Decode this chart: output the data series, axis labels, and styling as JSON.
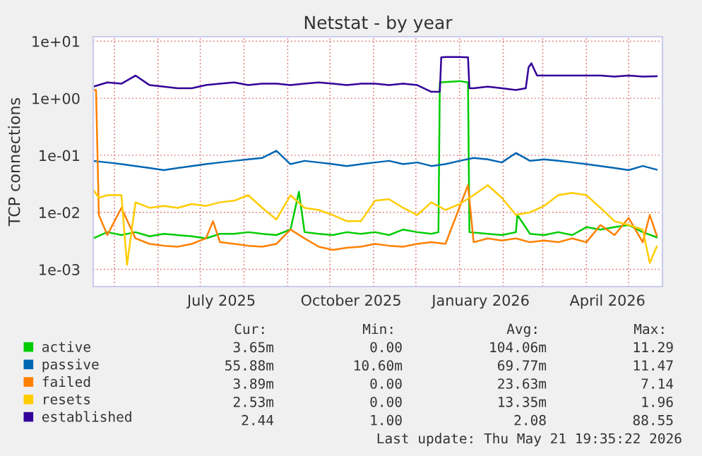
{
  "chart_data": {
    "type": "line",
    "title": "Netstat - by year",
    "ylabel": "TCP connections",
    "log": true,
    "grid": true,
    "legend": "bottom",
    "line_style": "solid",
    "xlim": [
      "2025-04-16",
      "2026-05-25"
    ],
    "xticks": [
      {
        "value": "2025-05-01",
        "label": null
      },
      {
        "value": "2025-06-01",
        "label": null
      },
      {
        "value": "2025-07-01",
        "label": null
      },
      {
        "value": "2025-08-01",
        "label": null
      },
      {
        "value": "2025-09-01",
        "label": null
      },
      {
        "value": "2025-10-01",
        "label": null
      },
      {
        "value": "2025-11-01",
        "label": null
      },
      {
        "value": "2025-12-01",
        "label": null
      },
      {
        "value": "2026-01-01",
        "label": null
      },
      {
        "value": "2026-02-01",
        "label": null
      },
      {
        "value": "2026-03-01",
        "label": null
      },
      {
        "value": "2026-04-01",
        "label": null
      },
      {
        "value": "2026-05-01",
        "label": null
      },
      {
        "value": "2025-07-16",
        "label": "July 2025"
      },
      {
        "value": "2025-10-16",
        "label": "October 2025"
      },
      {
        "value": "2026-01-16",
        "label": "January 2026"
      },
      {
        "value": "2026-04-16",
        "label": "April 2026"
      }
    ],
    "ylim": [
      0.0005,
      12
    ],
    "yticks": [
      {
        "value": 0.001,
        "label": "1e-03"
      },
      {
        "value": 0.01,
        "label": "1e-02"
      },
      {
        "value": 0.1,
        "label": "1e-01"
      },
      {
        "value": 1,
        "label": "1e+00"
      },
      {
        "value": 10,
        "label": "1e+01"
      }
    ],
    "series": [
      {
        "name": "active",
        "color": "#00cc00",
        "x": [
          "2025-04-16",
          "2025-04-26",
          "2025-05-06",
          "2025-05-16",
          "2025-05-26",
          "2025-06-05",
          "2025-06-15",
          "2025-06-25",
          "2025-07-05",
          "2025-07-15",
          "2025-07-25",
          "2025-08-04",
          "2025-08-14",
          "2025-08-24",
          "2025-09-03",
          "2025-09-09",
          "2025-09-13",
          "2025-09-23",
          "2025-10-03",
          "2025-10-13",
          "2025-10-23",
          "2025-11-02",
          "2025-11-12",
          "2025-11-22",
          "2025-12-02",
          "2025-12-12",
          "2025-12-17",
          "2025-12-18",
          "2026-01-01",
          "2026-01-07",
          "2026-01-08",
          "2026-01-21",
          "2026-01-31",
          "2026-02-10",
          "2026-02-11",
          "2026-02-20",
          "2026-03-02",
          "2026-03-12",
          "2026-03-22",
          "2026-04-01",
          "2026-04-11",
          "2026-04-21",
          "2026-05-01",
          "2026-05-11",
          "2026-05-21"
        ],
        "values": [
          0.0035,
          0.0045,
          0.004,
          0.0045,
          0.0038,
          0.0042,
          0.004,
          0.0038,
          0.0035,
          0.0042,
          0.0042,
          0.0045,
          0.0042,
          0.004,
          0.005,
          0.023,
          0.0045,
          0.0042,
          0.004,
          0.0045,
          0.0042,
          0.0045,
          0.004,
          0.005,
          0.0045,
          0.0042,
          0.0045,
          1.9,
          2.0,
          1.9,
          0.0045,
          0.0042,
          0.004,
          0.0045,
          0.009,
          0.0042,
          0.004,
          0.0045,
          0.004,
          0.0055,
          0.005,
          0.0055,
          0.006,
          0.0045,
          0.00365
        ]
      },
      {
        "name": "passive",
        "color": "#0066b3",
        "x": [
          "2025-04-16",
          "2025-04-26",
          "2025-05-06",
          "2025-05-16",
          "2025-05-26",
          "2025-06-05",
          "2025-06-15",
          "2025-06-25",
          "2025-07-05",
          "2025-07-15",
          "2025-07-25",
          "2025-08-04",
          "2025-08-14",
          "2025-08-24",
          "2025-09-03",
          "2025-09-13",
          "2025-09-23",
          "2025-10-03",
          "2025-10-13",
          "2025-10-23",
          "2025-11-02",
          "2025-11-12",
          "2025-11-22",
          "2025-12-02",
          "2025-12-12",
          "2025-12-22",
          "2026-01-01",
          "2026-01-11",
          "2026-01-21",
          "2026-01-31",
          "2026-02-10",
          "2026-02-20",
          "2026-03-02",
          "2026-03-12",
          "2026-03-22",
          "2026-04-01",
          "2026-04-11",
          "2026-04-21",
          "2026-05-01",
          "2026-05-11",
          "2026-05-21"
        ],
        "values": [
          0.08,
          0.075,
          0.07,
          0.065,
          0.06,
          0.055,
          0.06,
          0.065,
          0.07,
          0.075,
          0.08,
          0.085,
          0.09,
          0.12,
          0.07,
          0.08,
          0.075,
          0.07,
          0.065,
          0.07,
          0.075,
          0.08,
          0.07,
          0.075,
          0.065,
          0.07,
          0.08,
          0.09,
          0.085,
          0.075,
          0.11,
          0.08,
          0.085,
          0.08,
          0.075,
          0.07,
          0.065,
          0.06,
          0.055,
          0.065,
          0.056
        ]
      },
      {
        "name": "failed",
        "color": "#ff8000",
        "x": [
          "2025-04-16",
          "2025-04-18",
          "2025-04-20",
          "2025-04-26",
          "2025-05-06",
          "2025-05-16",
          "2025-05-26",
          "2025-06-05",
          "2025-06-15",
          "2025-06-25",
          "2025-07-05",
          "2025-07-10",
          "2025-07-15",
          "2025-07-25",
          "2025-08-04",
          "2025-08-14",
          "2025-08-24",
          "2025-09-03",
          "2025-09-13",
          "2025-09-23",
          "2025-10-03",
          "2025-10-13",
          "2025-10-23",
          "2025-11-02",
          "2025-11-12",
          "2025-11-22",
          "2025-12-02",
          "2025-12-12",
          "2025-12-22",
          "2026-01-07",
          "2026-01-11",
          "2026-01-21",
          "2026-01-31",
          "2026-02-10",
          "2026-02-20",
          "2026-03-02",
          "2026-03-12",
          "2026-03-22",
          "2026-04-01",
          "2026-04-11",
          "2026-04-21",
          "2026-05-01",
          "2026-05-11",
          "2026-05-16",
          "2026-05-21"
        ],
        "values": [
          1.4,
          1.4,
          0.009,
          0.004,
          0.012,
          0.0035,
          0.0028,
          0.0026,
          0.0025,
          0.0028,
          0.0035,
          0.007,
          0.003,
          0.0028,
          0.0026,
          0.0025,
          0.0028,
          0.005,
          0.0035,
          0.0025,
          0.0022,
          0.0024,
          0.0025,
          0.0028,
          0.0026,
          0.0025,
          0.0028,
          0.003,
          0.0028,
          0.03,
          0.003,
          0.0035,
          0.0032,
          0.0035,
          0.003,
          0.0032,
          0.003,
          0.0035,
          0.003,
          0.006,
          0.004,
          0.008,
          0.003,
          0.009,
          0.00389
        ]
      },
      {
        "name": "resets",
        "color": "#ffcc00",
        "x": [
          "2025-04-16",
          "2025-04-20",
          "2025-04-26",
          "2025-05-06",
          "2025-05-10",
          "2025-05-16",
          "2025-05-26",
          "2025-06-05",
          "2025-06-15",
          "2025-06-25",
          "2025-07-05",
          "2025-07-15",
          "2025-07-25",
          "2025-08-04",
          "2025-08-14",
          "2025-08-24",
          "2025-09-03",
          "2025-09-13",
          "2025-09-23",
          "2025-10-03",
          "2025-10-13",
          "2025-10-23",
          "2025-11-02",
          "2025-11-12",
          "2025-11-22",
          "2025-12-02",
          "2025-12-12",
          "2025-12-22",
          "2026-01-01",
          "2026-01-11",
          "2026-01-21",
          "2026-01-31",
          "2026-02-10",
          "2026-02-20",
          "2026-03-02",
          "2026-03-12",
          "2026-03-22",
          "2026-04-01",
          "2026-04-11",
          "2026-04-21",
          "2026-05-01",
          "2026-05-11",
          "2026-05-16",
          "2026-05-21"
        ],
        "values": [
          0.025,
          0.018,
          0.02,
          0.02,
          0.0012,
          0.015,
          0.012,
          0.013,
          0.012,
          0.014,
          0.013,
          0.015,
          0.016,
          0.02,
          0.012,
          0.0075,
          0.02,
          0.012,
          0.011,
          0.009,
          0.007,
          0.007,
          0.016,
          0.017,
          0.012,
          0.009,
          0.015,
          0.011,
          0.014,
          0.02,
          0.03,
          0.018,
          0.009,
          0.01,
          0.013,
          0.02,
          0.022,
          0.02,
          0.012,
          0.007,
          0.006,
          0.005,
          0.0013,
          0.00253
        ]
      },
      {
        "name": "established",
        "color": "#330099",
        "x": [
          "2025-04-16",
          "2025-04-26",
          "2025-05-06",
          "2025-05-16",
          "2025-05-26",
          "2025-06-05",
          "2025-06-15",
          "2025-06-25",
          "2025-07-05",
          "2025-07-15",
          "2025-07-25",
          "2025-08-04",
          "2025-08-14",
          "2025-08-24",
          "2025-09-03",
          "2025-09-13",
          "2025-09-23",
          "2025-10-03",
          "2025-10-13",
          "2025-10-23",
          "2025-11-02",
          "2025-11-12",
          "2025-11-22",
          "2025-12-02",
          "2025-12-12",
          "2025-12-18",
          "2025-12-19",
          "2025-12-22",
          "2026-01-01",
          "2026-01-07",
          "2026-01-08",
          "2026-01-11",
          "2026-01-21",
          "2026-01-31",
          "2026-02-10",
          "2026-02-17",
          "2026-02-19",
          "2026-02-21",
          "2026-02-25",
          "2026-03-02",
          "2026-03-12",
          "2026-03-22",
          "2026-04-01",
          "2026-04-11",
          "2026-04-21",
          "2026-05-01",
          "2026-05-11",
          "2026-05-21"
        ],
        "values": [
          1.6,
          1.9,
          1.8,
          2.5,
          1.7,
          1.6,
          1.5,
          1.5,
          1.7,
          1.8,
          1.9,
          1.7,
          1.8,
          1.8,
          1.7,
          1.8,
          1.9,
          1.8,
          1.7,
          1.8,
          1.8,
          1.7,
          1.8,
          1.7,
          1.3,
          1.3,
          5.2,
          5.3,
          5.3,
          5.2,
          1.5,
          1.5,
          1.6,
          1.5,
          1.4,
          1.5,
          3.5,
          4.1,
          2.5,
          2.5,
          2.5,
          2.5,
          2.5,
          2.5,
          2.4,
          2.5,
          2.4,
          2.44
        ]
      }
    ],
    "annotations": [
      "Cur:",
      "Min:",
      "Avg:",
      "Max:",
      "3.65m",
      "0.00",
      "104.06m",
      "11.29",
      "55.88m",
      "10.60m",
      "69.77m",
      "11.47",
      "3.89m",
      "0.00",
      "23.63m",
      "7.14",
      "2.53m",
      "0.00",
      "13.35m",
      "1.96",
      "2.44",
      "1.00",
      "2.08",
      "88.55",
      "Last update: Thu May 21 19:35:22 2026"
    ]
  }
}
